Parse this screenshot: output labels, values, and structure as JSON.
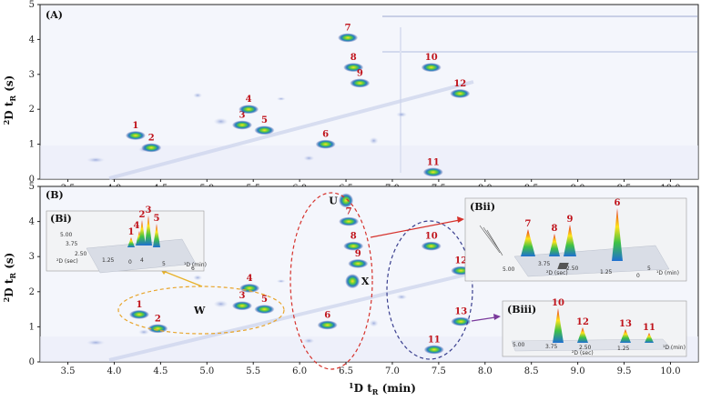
{
  "chart_data": {
    "type": "heatmap",
    "x_axis": {
      "label_sup": "1",
      "label_main": "D t",
      "label_sub": "R",
      "label_unit": " (min)",
      "range": [
        3.2,
        10.3
      ],
      "ticks": [
        "3.5",
        "4.0",
        "4.5",
        "5.0",
        "5.5",
        "6.0",
        "6.5",
        "7.0",
        "7.5",
        "8.0",
        "8.5",
        "9.0",
        "9.5",
        "10.0"
      ]
    },
    "y_axis": {
      "label_sup": "2",
      "label_main": "D t",
      "label_sub": "R",
      "label_unit": " (s)",
      "range": [
        0,
        5
      ],
      "ticks": [
        "0",
        "1",
        "2",
        "3",
        "4",
        "5"
      ]
    },
    "panels": [
      {
        "id": "A",
        "label": "(A)",
        "peaks": [
          {
            "label": "1",
            "x": 4.23,
            "y": 1.25
          },
          {
            "label": "2",
            "x": 4.4,
            "y": 0.9
          },
          {
            "label": "3",
            "x": 5.38,
            "y": 1.55
          },
          {
            "label": "4",
            "x": 5.45,
            "y": 2.0
          },
          {
            "label": "5",
            "x": 5.62,
            "y": 1.4
          },
          {
            "label": "6",
            "x": 6.28,
            "y": 1.0
          },
          {
            "label": "7",
            "x": 6.52,
            "y": 4.05
          },
          {
            "label": "8",
            "x": 6.58,
            "y": 3.2
          },
          {
            "label": "9",
            "x": 6.65,
            "y": 2.75
          },
          {
            "label": "10",
            "x": 7.42,
            "y": 3.2
          },
          {
            "label": "11",
            "x": 7.44,
            "y": 0.2
          },
          {
            "label": "12",
            "x": 7.73,
            "y": 2.45
          }
        ]
      },
      {
        "id": "B",
        "label": "(B)",
        "peaks": [
          {
            "label": "1",
            "x": 4.27,
            "y": 1.35
          },
          {
            "label": "2",
            "x": 4.47,
            "y": 0.95
          },
          {
            "label": "3",
            "x": 5.38,
            "y": 1.6
          },
          {
            "label": "4",
            "x": 5.46,
            "y": 2.1
          },
          {
            "label": "5",
            "x": 5.62,
            "y": 1.5
          },
          {
            "label": "6",
            "x": 6.3,
            "y": 1.05
          },
          {
            "label": "U",
            "x": 6.5,
            "y": 4.6
          },
          {
            "label": "7",
            "x": 6.53,
            "y": 4.0
          },
          {
            "label": "8",
            "x": 6.58,
            "y": 3.3
          },
          {
            "label": "9",
            "x": 6.63,
            "y": 2.8
          },
          {
            "label": "X",
            "x": 6.57,
            "y": 2.3
          },
          {
            "label": "10",
            "x": 7.42,
            "y": 3.3
          },
          {
            "label": "12",
            "x": 7.74,
            "y": 2.6
          },
          {
            "label": "13",
            "x": 7.74,
            "y": 1.15
          },
          {
            "label": "11",
            "x": 7.45,
            "y": 0.35
          }
        ],
        "insets": [
          {
            "id": "Bi",
            "label": "(Bi)",
            "peak_labels": [
              "1",
              "4",
              "2",
              "3",
              "5"
            ],
            "axis_ticks": [
              "5.00",
              "3.75",
              "2.50",
              "1.25",
              "0",
              "4",
              "5",
              "6"
            ],
            "axis_labels": [
              "²D (sec)",
              "¹D (min)"
            ]
          },
          {
            "id": "Bii",
            "label": "(Bii)",
            "peak_labels": [
              "7",
              "8",
              "9",
              "6"
            ],
            "axis_ticks": [
              "5.00",
              "3.75",
              "2.50",
              "1.25",
              "0",
              "5"
            ],
            "axis_labels": [
              "²D (sec)",
              "¹D (min)"
            ]
          },
          {
            "id": "Biii",
            "label": "(Biii)",
            "peak_labels": [
              "10",
              "12",
              "13",
              "11"
            ],
            "axis_ticks": [
              "5.00",
              "3.75",
              "2.50",
              "1.25"
            ],
            "axis_labels": [
              "²D (sec)",
              "¹D (min)"
            ]
          }
        ],
        "annotation_text": "W"
      }
    ]
  }
}
